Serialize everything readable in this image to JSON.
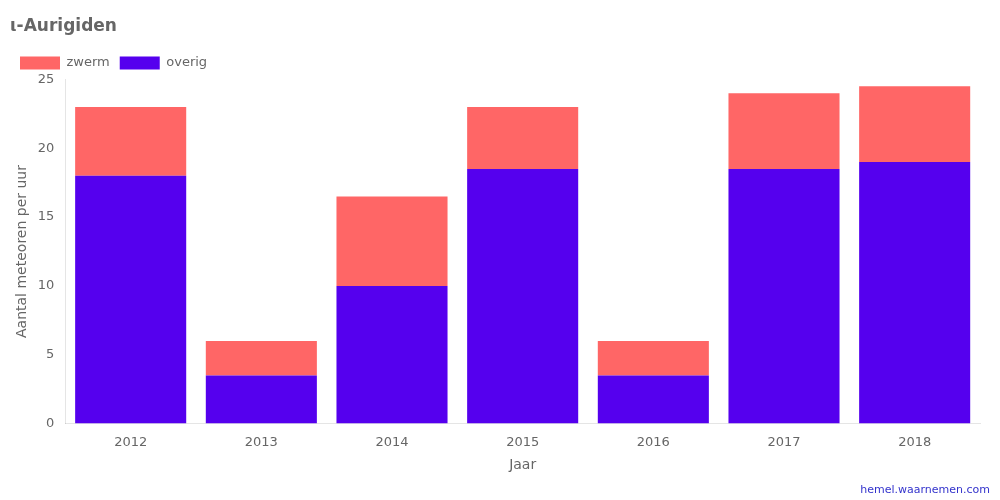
{
  "chart_data": {
    "type": "bar",
    "stacked": true,
    "title": "ι-Aurigiden",
    "xlabel": "Jaar",
    "ylabel": "Aantal meteoren per uur",
    "categories": [
      "2012",
      "2013",
      "2014",
      "2015",
      "2016",
      "2017",
      "2018"
    ],
    "series": [
      {
        "name": "overig",
        "color": "#5500EE",
        "values": [
          18,
          3.5,
          10,
          18.5,
          3.5,
          18.5,
          19
        ]
      },
      {
        "name": "zwerm",
        "color": "#FF6666",
        "values": [
          5,
          2.5,
          6.5,
          4.5,
          2.5,
          5.5,
          5.5
        ]
      }
    ],
    "ylim": [
      0,
      25
    ],
    "yticks": [
      0,
      5,
      10,
      15,
      20,
      25
    ],
    "grid": false,
    "legend": "upper left",
    "annotations": [
      {
        "text": "hemel.waarnemen.com",
        "color": "#3333CC"
      }
    ]
  }
}
